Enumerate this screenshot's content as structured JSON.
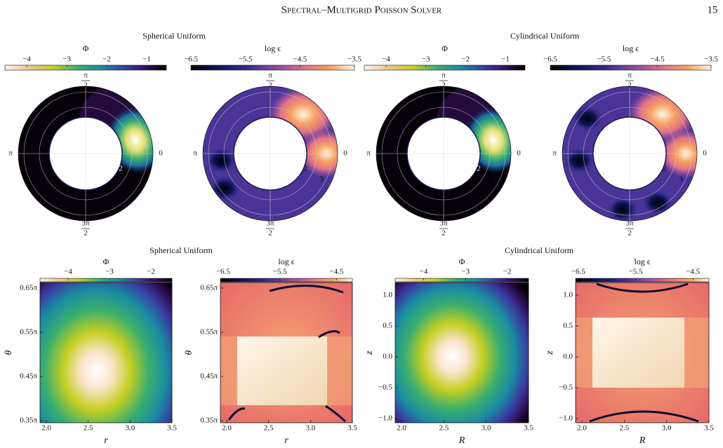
{
  "header": {
    "title": "Spectral–Multigrid Poisson Solver",
    "page": "15"
  },
  "top": {
    "groups": [
      "Spherical Uniform",
      "Cylindrical Uniform"
    ],
    "panels": [
      {
        "label": "Φ",
        "ticks": [
          "−4",
          "−3",
          "−2",
          "−1"
        ],
        "angles": {
          "top": {
            "num": "π",
            "den": "2"
          },
          "left": "π",
          "right": "0",
          "bottom": {
            "num": "3π",
            "den": "2"
          }
        },
        "radii": [
          "2",
          "3"
        ]
      },
      {
        "label": "log ϵ",
        "ticks": [
          "−6.5",
          "−5.5",
          "−4.5",
          "−3.5"
        ],
        "angles": {
          "top": {
            "num": "π",
            "den": "2"
          },
          "left": "π",
          "right": "0",
          "bottom": {
            "num": "3π",
            "den": "2"
          }
        },
        "radii": [
          "2",
          "3"
        ]
      },
      {
        "label": "Φ",
        "ticks": [
          "−4",
          "−3",
          "−2",
          "−1"
        ],
        "angles": {
          "top": {
            "num": "π",
            "den": "2"
          },
          "left": "π",
          "right": "0",
          "bottom": {
            "num": "3π",
            "den": "2"
          }
        },
        "radii": [
          "2",
          "3"
        ]
      },
      {
        "label": "log ϵ",
        "ticks": [
          "−6.5",
          "−5.5",
          "−4.5",
          "−3.5"
        ],
        "angles": {
          "top": {
            "num": "π",
            "den": "2"
          },
          "left": "π",
          "right": "0",
          "bottom": {
            "num": "3π",
            "den": "2"
          }
        },
        "radii": [
          "2",
          "3"
        ]
      }
    ]
  },
  "bottom": {
    "groups": [
      "Spherical Uniform",
      "Cylindrical Uniform"
    ],
    "panels": [
      {
        "label": "Φ",
        "ticks": [
          "−4",
          "−3",
          "−2"
        ],
        "xticks": [
          "2.0",
          "2.5",
          "3.0",
          "3.5"
        ],
        "xlabel": "r",
        "yticks": [
          "0.65π",
          "0.55π",
          "0.45π",
          "0.35π"
        ],
        "ylabel": "θ"
      },
      {
        "label": "log ϵ",
        "ticks": [
          "−6.5",
          "−5.5",
          "−4.5"
        ],
        "xticks": [
          "2.0",
          "2.5",
          "3.0",
          "3.5"
        ],
        "xlabel": "r",
        "yticks": [
          "0.65π",
          "0.55π",
          "0.45π",
          "0.35π"
        ],
        "ylabel": "θ"
      },
      {
        "label": "Φ",
        "ticks": [
          "−4",
          "−3",
          "−2"
        ],
        "xticks": [
          "2.0",
          "2.5",
          "3.0",
          "3.5"
        ],
        "xlabel": "R",
        "yticks": [
          "1.0",
          "0.5",
          "0.0",
          "−0.5",
          "−1.0"
        ],
        "ylabel": "z"
      },
      {
        "label": "log ϵ",
        "ticks": [
          "−6.5",
          "−5.5",
          "−4.5"
        ],
        "xticks": [
          "2.0",
          "2.5",
          "3.0",
          "3.5"
        ],
        "xlabel": "R",
        "yticks": [
          "1.0",
          "0.5",
          "0.0",
          "−0.5",
          "−1.0"
        ],
        "ylabel": "z"
      }
    ]
  }
}
